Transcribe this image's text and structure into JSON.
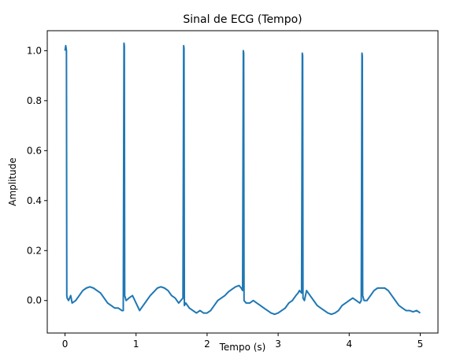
{
  "chart_data": {
    "type": "line",
    "title": "Sinal de ECG (Tempo)",
    "xlabel": "Tempo (s)",
    "ylabel": "Amplitude",
    "xlim": [
      -0.25,
      5.25
    ],
    "ylim": [
      -0.13,
      1.08
    ],
    "xticks": [
      0,
      1,
      2,
      3,
      4,
      5
    ],
    "xtick_labels": [
      "0",
      "1",
      "2",
      "3",
      "4",
      "5"
    ],
    "yticks": [
      0.0,
      0.2,
      0.4,
      0.6,
      0.8,
      1.0
    ],
    "ytick_labels": [
      "0.0",
      "0.2",
      "0.4",
      "0.6",
      "0.8",
      "1.0"
    ],
    "grid": false,
    "line_color": "#1f77b4",
    "series": [
      {
        "x": [
          0,
          0.01,
          0.02,
          0.025,
          0.03,
          0.05,
          0.08,
          0.1,
          0.15,
          0.2,
          0.25,
          0.3,
          0.35,
          0.4,
          0.45,
          0.5,
          0.55,
          0.6,
          0.65,
          0.7,
          0.75,
          0.8,
          0.82,
          0.83,
          0.835,
          0.84,
          0.86,
          0.9,
          0.95,
          1.0,
          1.05,
          1.1,
          1.15,
          1.2,
          1.25,
          1.3,
          1.35,
          1.4,
          1.45,
          1.5,
          1.55,
          1.6,
          1.63,
          1.66,
          1.67,
          1.675,
          1.68,
          1.7,
          1.75,
          1.8,
          1.85,
          1.9,
          1.95,
          2.0,
          2.05,
          2.1,
          2.15,
          2.2,
          2.25,
          2.3,
          2.35,
          2.4,
          2.45,
          2.48,
          2.5,
          2.51,
          2.515,
          2.52,
          2.55,
          2.6,
          2.65,
          2.7,
          2.75,
          2.8,
          2.85,
          2.9,
          2.95,
          3.0,
          3.05,
          3.1,
          3.15,
          3.2,
          3.25,
          3.28,
          3.3,
          3.33,
          3.34,
          3.345,
          3.35,
          3.37,
          3.4,
          3.45,
          3.5,
          3.55,
          3.6,
          3.65,
          3.7,
          3.75,
          3.8,
          3.85,
          3.9,
          3.95,
          4.0,
          4.05,
          4.1,
          4.15,
          4.17,
          4.18,
          4.185,
          4.19,
          4.21,
          4.25,
          4.3,
          4.35,
          4.4,
          4.45,
          4.5,
          4.55,
          4.6,
          4.65,
          4.7,
          4.75,
          4.8,
          4.85,
          4.9,
          4.95,
          5.0
        ],
        "y": [
          1.0,
          1.02,
          1.0,
          0.02,
          0.01,
          0.0,
          0.02,
          -0.01,
          0.0,
          0.02,
          0.04,
          0.05,
          0.055,
          0.05,
          0.04,
          0.03,
          0.01,
          -0.01,
          -0.02,
          -0.03,
          -0.03,
          -0.04,
          -0.04,
          1.03,
          1.02,
          0.02,
          0.0,
          0.01,
          0.02,
          -0.01,
          -0.04,
          -0.02,
          0.0,
          0.02,
          0.035,
          0.05,
          0.055,
          0.05,
          0.04,
          0.02,
          0.01,
          -0.01,
          0.0,
          0.01,
          1.02,
          1.01,
          -0.02,
          -0.01,
          -0.03,
          -0.04,
          -0.05,
          -0.04,
          -0.05,
          -0.05,
          -0.04,
          -0.02,
          0.0,
          0.01,
          0.02,
          0.035,
          0.045,
          0.055,
          0.06,
          0.05,
          0.04,
          1.0,
          0.99,
          0.0,
          -0.01,
          -0.01,
          0.0,
          -0.01,
          -0.02,
          -0.03,
          -0.04,
          -0.05,
          -0.055,
          -0.05,
          -0.04,
          -0.03,
          -0.01,
          0.0,
          0.02,
          0.03,
          0.04,
          0.03,
          0.99,
          0.98,
          0.01,
          0.0,
          0.04,
          0.02,
          0.0,
          -0.02,
          -0.03,
          -0.04,
          -0.05,
          -0.055,
          -0.05,
          -0.04,
          -0.02,
          -0.01,
          0.0,
          0.01,
          0.0,
          -0.01,
          0.0,
          0.99,
          0.98,
          0.02,
          0.0,
          0.0,
          0.02,
          0.04,
          0.05,
          0.05,
          0.05,
          0.04,
          0.02,
          0.0,
          -0.02,
          -0.03,
          -0.04,
          -0.04,
          -0.045,
          -0.04,
          -0.05
        ]
      }
    ]
  }
}
